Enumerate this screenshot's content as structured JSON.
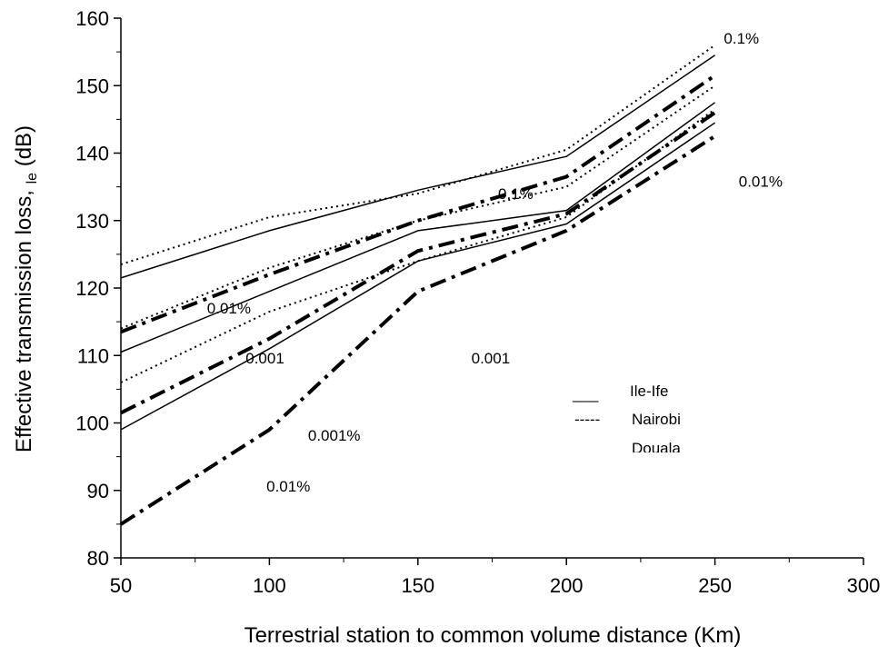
{
  "chart_data": {
    "type": "line",
    "title": "",
    "xlabel": "Terrestrial station to common volume distance (Km)",
    "ylabel_main": "Effective transmission loss, ",
    "ylabel_sub": "le",
    "ylabel_unit": " (dB)",
    "xlim": [
      50,
      300
    ],
    "ylim": [
      80,
      160
    ],
    "xticks": [
      "50",
      "100",
      "150",
      "200",
      "250",
      "300"
    ],
    "yticks": [
      "80",
      "90",
      "100",
      "110",
      "120",
      "130",
      "140",
      "150",
      "160"
    ],
    "legend": {
      "position": "right-center",
      "entries": [
        {
          "key": "ile-ife",
          "label": "Ile-Ife",
          "marker": "___"
        },
        {
          "key": "nairobi",
          "label": "Nairobi",
          "marker": "-----"
        },
        {
          "key": "douala",
          "label": "Douala",
          "marker": ""
        }
      ]
    },
    "series": [
      {
        "location": "ile-ife",
        "x": [
          50,
          100,
          150,
          200,
          250
        ],
        "y": [
          121.5,
          128.5,
          134.5,
          139.5,
          154.5
        ]
      },
      {
        "location": "ile-ife",
        "x": [
          50,
          100,
          150,
          200,
          250
        ],
        "y": [
          110.5,
          119.5,
          128.5,
          131.5,
          147.5
        ]
      },
      {
        "location": "ile-ife",
        "x": [
          50,
          100,
          150,
          200,
          250
        ],
        "y": [
          99.0,
          111.0,
          124.0,
          129.5,
          144.5
        ]
      },
      {
        "location": "nairobi",
        "x": [
          50,
          100,
          150,
          200,
          250
        ],
        "y": [
          123.5,
          130.5,
          134.0,
          140.5,
          156.0
        ]
      },
      {
        "location": "nairobi",
        "x": [
          50,
          100,
          150,
          200,
          250
        ],
        "y": [
          114.0,
          123.0,
          130.0,
          135.0,
          150.0
        ]
      },
      {
        "location": "nairobi",
        "x": [
          50,
          100,
          150,
          200,
          250
        ],
        "y": [
          106.0,
          116.5,
          124.0,
          130.5,
          146.5
        ]
      },
      {
        "location": "douala",
        "x": [
          50,
          100,
          150,
          200,
          250
        ],
        "y": [
          113.5,
          122.0,
          130.0,
          136.5,
          151.5
        ]
      },
      {
        "location": "douala",
        "x": [
          50,
          100,
          150,
          200,
          250
        ],
        "y": [
          101.5,
          112.5,
          125.5,
          131.0,
          146.0
        ]
      },
      {
        "location": "douala",
        "x": [
          50,
          100,
          150,
          200,
          250
        ],
        "y": [
          85.0,
          99.0,
          119.5,
          128.5,
          142.5
        ]
      }
    ],
    "annotations": [
      {
        "text": "0.1%",
        "x": 253,
        "y": 156.2
      },
      {
        "text": "0.1%",
        "x": 177,
        "y": 133.2
      },
      {
        "text": "0.01%",
        "x": 258,
        "y": 135.0
      },
      {
        "text": "0.01%",
        "x": 79,
        "y": 116.2
      },
      {
        "text": "0.001",
        "x": 92,
        "y": 108.8
      },
      {
        "text": "0.001",
        "x": 168,
        "y": 108.8
      },
      {
        "text": "0.001%",
        "x": 113,
        "y": 97.4
      },
      {
        "text": "0.01%",
        "x": 99,
        "y": 89.8
      }
    ]
  }
}
